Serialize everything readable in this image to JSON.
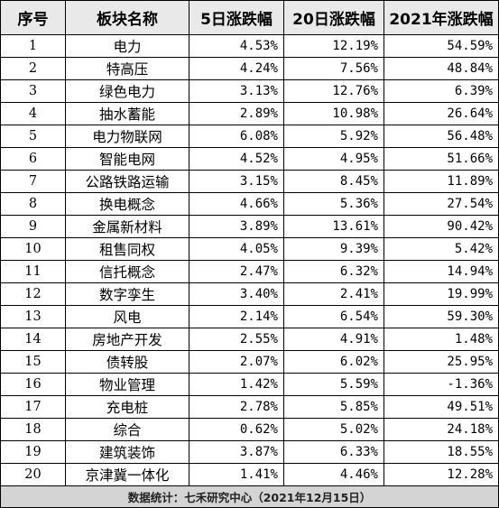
{
  "table": {
    "headers": [
      "序号",
      "板块名称",
      "5日涨跌幅",
      "20日涨跌幅",
      "2021年涨跌幅"
    ],
    "rows": [
      {
        "no": "1",
        "name": "电力",
        "d5": "4.53%",
        "d20": "12.19%",
        "y2021": "54.59%"
      },
      {
        "no": "2",
        "name": "特高压",
        "d5": "4.24%",
        "d20": "7.56%",
        "y2021": "48.84%"
      },
      {
        "no": "3",
        "name": "绿色电力",
        "d5": "3.13%",
        "d20": "12.76%",
        "y2021": "6.39%"
      },
      {
        "no": "4",
        "name": "抽水蓄能",
        "d5": "2.89%",
        "d20": "10.98%",
        "y2021": "26.64%"
      },
      {
        "no": "5",
        "name": "电力物联网",
        "d5": "6.08%",
        "d20": "5.92%",
        "y2021": "56.48%"
      },
      {
        "no": "6",
        "name": "智能电网",
        "d5": "4.52%",
        "d20": "4.95%",
        "y2021": "51.66%"
      },
      {
        "no": "7",
        "name": "公路铁路运输",
        "d5": "3.15%",
        "d20": "8.45%",
        "y2021": "11.89%"
      },
      {
        "no": "8",
        "name": "换电概念",
        "d5": "4.66%",
        "d20": "5.36%",
        "y2021": "27.54%"
      },
      {
        "no": "9",
        "name": "金属新材料",
        "d5": "3.89%",
        "d20": "13.61%",
        "y2021": "90.42%"
      },
      {
        "no": "10",
        "name": "租售同权",
        "d5": "4.05%",
        "d20": "9.39%",
        "y2021": "5.42%"
      },
      {
        "no": "11",
        "name": "信托概念",
        "d5": "2.47%",
        "d20": "6.32%",
        "y2021": "14.94%"
      },
      {
        "no": "12",
        "name": "数字孪生",
        "d5": "3.40%",
        "d20": "2.41%",
        "y2021": "19.99%"
      },
      {
        "no": "13",
        "name": "风电",
        "d5": "2.14%",
        "d20": "6.54%",
        "y2021": "59.30%"
      },
      {
        "no": "14",
        "name": "房地产开发",
        "d5": "2.55%",
        "d20": "4.91%",
        "y2021": "1.48%"
      },
      {
        "no": "15",
        "name": "债转股",
        "d5": "2.07%",
        "d20": "6.02%",
        "y2021": "25.95%"
      },
      {
        "no": "16",
        "name": "物业管理",
        "d5": "1.42%",
        "d20": "5.59%",
        "y2021": "-1.36%"
      },
      {
        "no": "17",
        "name": "充电桩",
        "d5": "2.78%",
        "d20": "5.85%",
        "y2021": "49.51%"
      },
      {
        "no": "18",
        "name": "综合",
        "d5": "0.62%",
        "d20": "5.02%",
        "y2021": "24.18%"
      },
      {
        "no": "19",
        "name": "建筑装饰",
        "d5": "3.87%",
        "d20": "6.33%",
        "y2021": "18.55%"
      },
      {
        "no": "20",
        "name": "京津冀一体化",
        "d5": "1.41%",
        "d20": "4.46%",
        "y2021": "12.28%"
      }
    ],
    "footer": "数据统计：七禾研究中心（2021年12月15日）"
  }
}
